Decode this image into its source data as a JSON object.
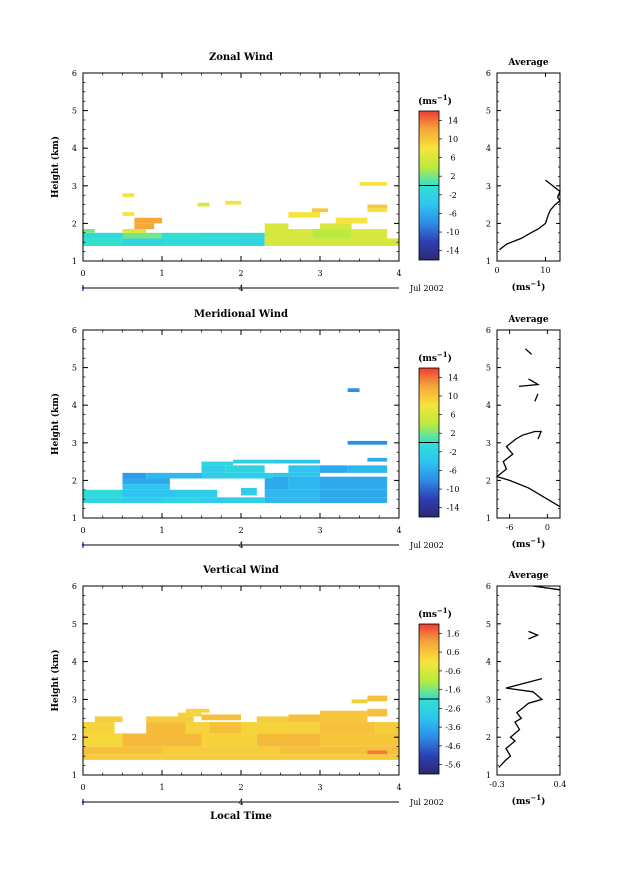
{
  "chart_data": [
    {
      "type": "heatmap",
      "title": "Zonal Wind",
      "ylabel": "Height (km)",
      "xlabel": "",
      "xlim": [
        0,
        4
      ],
      "ylim": [
        1,
        6
      ],
      "x_ticks": [
        "0",
        "1",
        "2",
        "3",
        "4"
      ],
      "y_ticks": [
        "1",
        "2",
        "3",
        "4",
        "5",
        "6"
      ],
      "date_axis": {
        "tick": "4",
        "label": "Jul 2002"
      },
      "colorbar": {
        "unit": "(ms⁻¹)",
        "min": -16,
        "max": 16,
        "ticks": [
          "14",
          "10",
          "6",
          "2",
          "-2",
          "-6",
          "-10",
          "-14"
        ]
      },
      "cells": [
        [
          0.0,
          0.5,
          1.4,
          1.6,
          0
        ],
        [
          0.5,
          1.0,
          1.4,
          1.6,
          -2
        ],
        [
          1.0,
          1.5,
          1.4,
          1.6,
          -1
        ],
        [
          1.5,
          2.0,
          1.4,
          1.6,
          -1
        ],
        [
          2.0,
          2.3,
          1.4,
          1.6,
          -2
        ],
        [
          0.0,
          0.5,
          1.6,
          1.75,
          -1
        ],
        [
          0.5,
          1.0,
          1.6,
          1.75,
          2
        ],
        [
          1.0,
          1.5,
          1.6,
          1.75,
          0
        ],
        [
          1.5,
          2.0,
          1.6,
          1.75,
          -1
        ],
        [
          2.0,
          2.3,
          1.6,
          1.75,
          -1
        ],
        [
          0.0,
          0.15,
          1.75,
          1.85,
          2
        ],
        [
          0.5,
          0.8,
          1.75,
          1.85,
          6
        ],
        [
          0.65,
          0.9,
          1.85,
          2.0,
          12
        ],
        [
          0.65,
          1.0,
          2.0,
          2.15,
          12
        ],
        [
          0.5,
          0.65,
          2.2,
          2.3,
          8
        ],
        [
          0.5,
          0.65,
          2.7,
          2.8,
          8
        ],
        [
          1.45,
          1.6,
          2.45,
          2.55,
          6
        ],
        [
          1.8,
          2.0,
          2.5,
          2.6,
          8
        ],
        [
          2.3,
          4.0,
          1.4,
          1.6,
          6
        ],
        [
          2.3,
          2.9,
          1.6,
          1.85,
          6
        ],
        [
          2.9,
          3.4,
          1.6,
          1.85,
          4
        ],
        [
          3.4,
          3.85,
          1.6,
          1.85,
          6
        ],
        [
          2.3,
          2.6,
          1.85,
          2.0,
          6
        ],
        [
          3.0,
          3.4,
          1.85,
          2.0,
          6
        ],
        [
          3.2,
          3.6,
          2.0,
          2.15,
          8
        ],
        [
          2.6,
          3.0,
          2.15,
          2.3,
          8
        ],
        [
          2.9,
          3.1,
          2.3,
          2.4,
          10
        ],
        [
          3.6,
          3.85,
          2.3,
          2.4,
          8
        ],
        [
          3.6,
          3.85,
          2.4,
          2.5,
          10
        ],
        [
          3.5,
          3.85,
          3.0,
          3.1,
          8
        ]
      ],
      "avg_profile": {
        "title": "Average",
        "unit": "(ms⁻¹)",
        "xlim": [
          0,
          13
        ],
        "ylim": [
          1,
          6
        ],
        "x_ticks": [
          "0",
          "10"
        ],
        "y_ticks": [
          "1",
          "2",
          "3",
          "4",
          "5",
          "6"
        ],
        "points": [
          [
            0.5,
            1.3
          ],
          [
            2,
            1.45
          ],
          [
            5,
            1.6
          ],
          [
            7,
            1.75
          ],
          [
            8.5,
            1.85
          ],
          [
            10,
            2.0
          ],
          [
            10.5,
            2.2
          ],
          [
            11,
            2.35
          ],
          [
            12,
            2.5
          ],
          [
            13,
            2.6
          ],
          [
            12.5,
            2.7
          ],
          [
            13,
            2.85
          ],
          [
            12,
            2.95
          ],
          [
            11,
            3.05
          ],
          [
            10,
            3.15
          ]
        ]
      }
    },
    {
      "type": "heatmap",
      "title": "Meridional Wind",
      "ylabel": "Height (km)",
      "xlabel": "",
      "xlim": [
        0,
        4
      ],
      "ylim": [
        1,
        6
      ],
      "x_ticks": [
        "0",
        "1",
        "2",
        "3",
        "4"
      ],
      "y_ticks": [
        "1",
        "2",
        "3",
        "4",
        "5",
        "6"
      ],
      "date_axis": {
        "tick": "4",
        "label": "Jul 2002"
      },
      "colorbar": {
        "unit": "(ms⁻¹)",
        "min": -16,
        "max": 16,
        "ticks": [
          "14",
          "10",
          "6",
          "2",
          "-2",
          "-6",
          "-10",
          "-14"
        ]
      },
      "cells": [
        [
          0.0,
          0.5,
          1.4,
          1.55,
          -2
        ],
        [
          0.5,
          1.0,
          1.4,
          1.55,
          -3
        ],
        [
          1.0,
          1.5,
          1.4,
          1.55,
          -2
        ],
        [
          1.5,
          2.3,
          1.4,
          1.55,
          -3
        ],
        [
          2.3,
          3.0,
          1.4,
          1.55,
          -5
        ],
        [
          3.0,
          3.85,
          1.4,
          1.55,
          -6
        ],
        [
          0.0,
          0.5,
          1.55,
          1.75,
          -1
        ],
        [
          0.5,
          1.2,
          1.55,
          1.75,
          -4
        ],
        [
          1.2,
          1.7,
          1.55,
          1.75,
          -3
        ],
        [
          2.3,
          3.0,
          1.55,
          1.75,
          -5
        ],
        [
          3.0,
          3.85,
          1.55,
          1.75,
          -6
        ],
        [
          0.5,
          1.1,
          1.75,
          1.9,
          -4
        ],
        [
          2.0,
          2.2,
          1.6,
          1.8,
          -3
        ],
        [
          2.3,
          2.6,
          1.75,
          2.1,
          -6
        ],
        [
          2.6,
          3.0,
          1.75,
          2.1,
          -5
        ],
        [
          3.0,
          3.85,
          1.75,
          2.1,
          -6
        ],
        [
          0.5,
          1.1,
          1.9,
          2.05,
          -6
        ],
        [
          0.5,
          0.8,
          2.05,
          2.2,
          -7
        ],
        [
          0.8,
          1.5,
          2.05,
          2.2,
          -5
        ],
        [
          1.5,
          2.4,
          2.05,
          2.2,
          -3
        ],
        [
          2.4,
          3.0,
          2.1,
          2.2,
          -4
        ],
        [
          1.5,
          1.8,
          2.2,
          2.4,
          -3
        ],
        [
          1.8,
          2.3,
          2.2,
          2.4,
          -2
        ],
        [
          2.6,
          3.0,
          2.2,
          2.4,
          -4
        ],
        [
          3.0,
          3.35,
          2.2,
          2.4,
          -6
        ],
        [
          3.35,
          3.85,
          2.2,
          2.4,
          -5
        ],
        [
          1.5,
          1.9,
          2.4,
          2.5,
          -2
        ],
        [
          1.9,
          2.4,
          2.45,
          2.55,
          -3
        ],
        [
          2.4,
          3.0,
          2.45,
          2.55,
          -4
        ],
        [
          3.6,
          3.85,
          2.5,
          2.6,
          -6
        ],
        [
          3.35,
          3.85,
          2.95,
          3.05,
          -8
        ],
        [
          3.35,
          3.5,
          4.35,
          4.45,
          -8
        ]
      ],
      "avg_profile": {
        "title": "Average",
        "unit": "(ms⁻¹)",
        "xlim": [
          -8,
          2
        ],
        "ylim": [
          1,
          6
        ],
        "x_ticks": [
          "-6",
          "0"
        ],
        "y_ticks": [
          "1",
          "2",
          "3",
          "4",
          "5",
          "6"
        ],
        "points": [
          [
            2,
            1.3
          ],
          [
            0,
            1.5
          ],
          [
            -3,
            1.8
          ],
          [
            -6,
            2.0
          ],
          [
            -8,
            2.1
          ],
          [
            -6.5,
            2.3
          ],
          [
            -7,
            2.5
          ],
          [
            -5.5,
            2.7
          ],
          [
            -6.5,
            2.9
          ],
          [
            -5,
            3.1
          ],
          [
            -4,
            3.2
          ],
          [
            -2,
            3.3
          ],
          [
            -1,
            3.3
          ],
          [
            -1.5,
            3.1
          ]
        ],
        "fragments": [
          [
            [
              -3.5,
              5.5
            ],
            [
              -2.5,
              5.35
            ]
          ],
          [
            [
              -4.5,
              4.5
            ],
            [
              -1.5,
              4.55
            ],
            [
              -3,
              4.7
            ]
          ],
          [
            [
              -2,
              4.1
            ],
            [
              -1.5,
              4.3
            ]
          ]
        ]
      }
    },
    {
      "type": "heatmap",
      "title": "Vertical Wind",
      "ylabel": "Height (km)",
      "xlabel": "Local Time",
      "xlim": [
        0,
        4
      ],
      "ylim": [
        1,
        6
      ],
      "x_ticks": [
        "0",
        "1",
        "2",
        "3",
        "4"
      ],
      "y_ticks": [
        "1",
        "2",
        "3",
        "4",
        "5",
        "6"
      ],
      "date_axis": {
        "tick": "4",
        "label": "Jul 2002"
      },
      "colorbar": {
        "unit": "(ms⁻¹)",
        "min": -6,
        "max": 2,
        "ticks": [
          "1.6",
          "0.6",
          "-0.6",
          "-1.6",
          "-2.6",
          "-3.6",
          "-4.6",
          "-5.6"
        ]
      },
      "cells": [
        [
          0.0,
          4.0,
          1.4,
          1.55,
          0.4
        ],
        [
          0.0,
          1.0,
          1.55,
          1.75,
          0.6
        ],
        [
          1.0,
          2.5,
          1.55,
          1.75,
          0.4
        ],
        [
          2.5,
          4.0,
          1.55,
          1.75,
          0.6
        ],
        [
          0.0,
          0.5,
          1.75,
          2.1,
          0.2
        ],
        [
          0.5,
          1.5,
          1.75,
          2.1,
          0.7
        ],
        [
          1.5,
          2.2,
          1.75,
          2.1,
          0.3
        ],
        [
          2.2,
          3.0,
          1.75,
          2.1,
          0.7
        ],
        [
          3.0,
          4.0,
          1.75,
          2.1,
          0.5
        ],
        [
          0.0,
          0.4,
          2.1,
          2.4,
          0.3
        ],
        [
          0.8,
          1.3,
          2.1,
          2.4,
          0.7
        ],
        [
          1.3,
          1.6,
          2.1,
          2.4,
          0.3
        ],
        [
          1.6,
          2.0,
          2.1,
          2.4,
          0.6
        ],
        [
          2.0,
          3.0,
          2.1,
          2.4,
          0.3
        ],
        [
          3.0,
          3.7,
          2.1,
          2.4,
          0.6
        ],
        [
          3.7,
          4.0,
          2.1,
          2.4,
          0.4
        ],
        [
          0.15,
          0.5,
          2.4,
          2.55,
          0.4
        ],
        [
          0.8,
          1.4,
          2.4,
          2.55,
          0.4
        ],
        [
          1.2,
          1.5,
          2.55,
          2.65,
          0.3
        ],
        [
          1.5,
          2.0,
          2.45,
          2.6,
          0.6
        ],
        [
          2.2,
          2.6,
          2.4,
          2.55,
          0.4
        ],
        [
          2.6,
          3.0,
          2.4,
          2.6,
          0.6
        ],
        [
          3.0,
          3.6,
          2.4,
          2.7,
          0.5
        ],
        [
          3.6,
          3.85,
          2.55,
          2.75,
          0.6
        ],
        [
          1.3,
          1.6,
          2.65,
          2.75,
          0.3
        ],
        [
          3.4,
          3.6,
          2.9,
          3.0,
          0.4
        ],
        [
          3.6,
          3.85,
          2.95,
          3.1,
          0.6
        ],
        [
          3.6,
          3.85,
          1.55,
          1.65,
          1.4
        ]
      ],
      "avg_profile": {
        "title": "Average",
        "unit": "(ms⁻¹)",
        "xlim": [
          -0.3,
          0.4
        ],
        "ylim": [
          1,
          6
        ],
        "x_ticks": [
          "-0.3",
          "0.4"
        ],
        "y_ticks": [
          "1",
          "2",
          "3",
          "4",
          "5",
          "6"
        ],
        "points": [
          [
            -0.28,
            1.2
          ],
          [
            -0.2,
            1.4
          ],
          [
            -0.15,
            1.5
          ],
          [
            -0.2,
            1.7
          ],
          [
            -0.1,
            1.9
          ],
          [
            -0.15,
            2.0
          ],
          [
            -0.05,
            2.2
          ],
          [
            -0.1,
            2.4
          ],
          [
            -0.03,
            2.5
          ],
          [
            -0.08,
            2.65
          ],
          [
            0.0,
            2.8
          ],
          [
            0.05,
            2.9
          ],
          [
            0.2,
            3.0
          ],
          [
            0.1,
            3.2
          ],
          [
            -0.2,
            3.3
          ],
          [
            0.2,
            3.55
          ]
        ],
        "fragments": [
          [
            [
              0.05,
              4.8
            ],
            [
              0.15,
              4.7
            ],
            [
              0.05,
              4.6
            ]
          ],
          [
            [
              0.1,
              6.0
            ],
            [
              0.4,
              5.9
            ]
          ]
        ]
      }
    }
  ]
}
